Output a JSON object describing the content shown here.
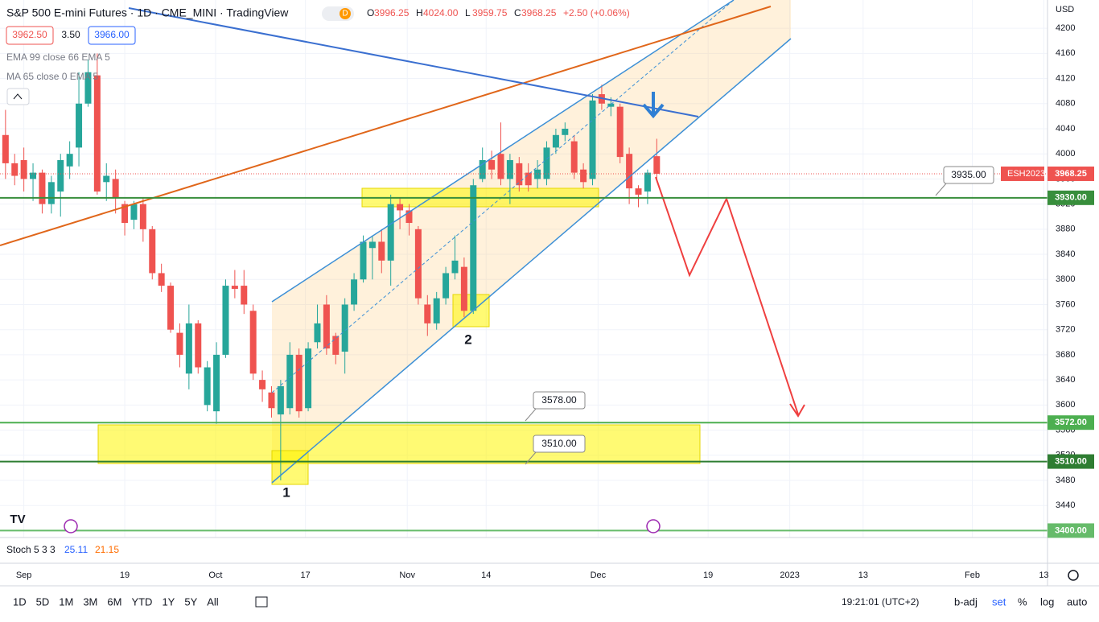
{
  "header": {
    "title": "S&P 500 E-mini Futures · 1D · CME_MINI · TradingView",
    "badge": "D",
    "ohlc": [
      {
        "label": "O",
        "value": "3996.25"
      },
      {
        "label": "H",
        "value": "4024.00"
      },
      {
        "label": "L",
        "value": "3959.75"
      },
      {
        "label": "C",
        "value": "3968.25"
      }
    ],
    "change": "+2.50 (+0.06%)",
    "bid": "3962.50",
    "spread": "3.50",
    "ask": "3966.00",
    "indicators": [
      "EMA 99 close 66 EMA 5",
      "MA 65 close 0 EMA 5"
    ]
  },
  "stoch": {
    "name": "Stoch 5 3 3",
    "k": "25.11",
    "d": "21.15"
  },
  "currency": "USD",
  "toolbar": {
    "ranges": [
      "1D",
      "5D",
      "1M",
      "3M",
      "6M",
      "YTD",
      "1Y",
      "5Y",
      "All"
    ],
    "time": "19:21:01 (UTC+2)",
    "options": [
      "b-adj",
      "set",
      "%",
      "log",
      "auto"
    ]
  },
  "annotations": {
    "callouts": [
      "3935.00",
      "3578.00",
      "3510.00"
    ],
    "points": [
      "1",
      "2"
    ],
    "symbol": "ESH2023"
  },
  "chart_data": {
    "type": "candlestick",
    "up_color": "#26a69a",
    "down_color": "#ef5350",
    "open": [
      4030,
      3985,
      3990,
      3960,
      3970,
      3920,
      3940,
      3980,
      4010,
      4080,
      4125,
      3955,
      3960,
      3920,
      3895,
      3920,
      3880,
      3810,
      3790,
      3715,
      3650,
      3730,
      3600,
      3590,
      3680,
      3790,
      3790,
      3750,
      3640,
      3620,
      3585,
      3595,
      3680,
      3595,
      3700,
      3760,
      3710,
      3685,
      3760,
      3800,
      3850,
      3860,
      3830,
      3920,
      3910,
      3880,
      3760,
      3730,
      3770,
      3810,
      3820,
      3750,
      3960,
      3990,
      4000,
      3960,
      3985,
      3970,
      3960,
      3960,
      4010,
      4030,
      4020,
      3975,
      3960,
      4095,
      4075,
      4075,
      4000,
      3945,
      3940,
      3996.25
    ],
    "high": [
      4070,
      4000,
      4010,
      3985,
      3975,
      3965,
      4000,
      4020,
      4130,
      4150,
      4160,
      3985,
      3975,
      3925,
      3925,
      3930,
      3885,
      3825,
      3795,
      3730,
      3760,
      3735,
      3670,
      3700,
      3800,
      3815,
      3815,
      3760,
      3655,
      3630,
      3640,
      3700,
      3690,
      3700,
      3760,
      3775,
      3715,
      3770,
      3810,
      3870,
      3870,
      3880,
      3935,
      3930,
      3920,
      3885,
      3775,
      3780,
      3820,
      3870,
      3835,
      3960,
      4010,
      4005,
      4050,
      4000,
      3995,
      3985,
      3990,
      4020,
      4040,
      4050,
      4030,
      3985,
      4095,
      4110,
      4090,
      4080,
      4010,
      3950,
      3975,
      4024
    ],
    "low": [
      3960,
      3950,
      3940,
      3925,
      3905,
      3905,
      3900,
      3960,
      3980,
      4075,
      3935,
      3925,
      3905,
      3870,
      3880,
      3860,
      3800,
      3780,
      3715,
      3660,
      3625,
      3650,
      3590,
      3570,
      3675,
      3770,
      3745,
      3640,
      3605,
      3580,
      3480,
      3585,
      3580,
      3590,
      3690,
      3680,
      3665,
      3650,
      3750,
      3795,
      3800,
      3810,
      3790,
      3880,
      3870,
      3760,
      3710,
      3720,
      3760,
      3800,
      3740,
      3745,
      3955,
      3960,
      3950,
      3920,
      3940,
      3940,
      3945,
      3950,
      4000,
      4020,
      3960,
      3945,
      3950,
      4070,
      4060,
      3985,
      3920,
      3915,
      3920,
      3959.75
    ],
    "close": [
      3985,
      3965,
      3960,
      3970,
      3920,
      3955,
      3990,
      4000,
      4080,
      4130,
      3940,
      3965,
      3930,
      3890,
      3920,
      3880,
      3810,
      3790,
      3720,
      3680,
      3730,
      3660,
      3660,
      3680,
      3790,
      3785,
      3760,
      3650,
      3625,
      3595,
      3630,
      3680,
      3590,
      3690,
      3730,
      3690,
      3680,
      3760,
      3800,
      3860,
      3860,
      3830,
      3920,
      3910,
      3890,
      3770,
      3730,
      3770,
      3810,
      3830,
      3750,
      3950,
      3990,
      3975,
      3960,
      3990,
      3950,
      3950,
      3975,
      4010,
      4030,
      4040,
      3970,
      3955,
      4085,
      4080,
      4080,
      3995,
      3945,
      3935,
      3970,
      3968.25
    ],
    "xlim": [
      -0.6,
      113.6
    ],
    "xticks": [
      {
        "value": 2,
        "label": "Sep"
      },
      {
        "value": 13,
        "label": "19"
      },
      {
        "value": 22.9,
        "label": "Oct"
      },
      {
        "value": 32.7,
        "label": "17"
      },
      {
        "value": 43.8,
        "label": "Nov"
      },
      {
        "value": 52.4,
        "label": "14"
      },
      {
        "value": 64.6,
        "label": "Dec"
      },
      {
        "value": 76.6,
        "label": "19"
      },
      {
        "value": 85.5,
        "label": "2023"
      },
      {
        "value": 93.5,
        "label": "13"
      },
      {
        "value": 105.4,
        "label": "Feb"
      },
      {
        "value": 113.2,
        "label": "13"
      }
    ],
    "ylim": [
      3389,
      4245
    ],
    "yticks": [
      3440,
      3480,
      3520,
      3560,
      3600,
      3640,
      3680,
      3720,
      3760,
      3800,
      3840,
      3880,
      3920,
      3960,
      4000,
      4040,
      4080,
      4120,
      4160,
      4200
    ],
    "grid": true,
    "hlines": [
      {
        "value": 3930,
        "label": "3930.00",
        "color": "#388e3c"
      },
      {
        "value": 3572,
        "label": "3572.00",
        "color": "#4caf50"
      },
      {
        "value": 3510,
        "label": "3510.00",
        "color": "#2e7d32"
      },
      {
        "value": 3400,
        "label": "3400.00",
        "color": "#66bb6a"
      }
    ],
    "last": {
      "value": 3968.25,
      "label": "3968.25",
      "color": "#ef5350"
    }
  }
}
